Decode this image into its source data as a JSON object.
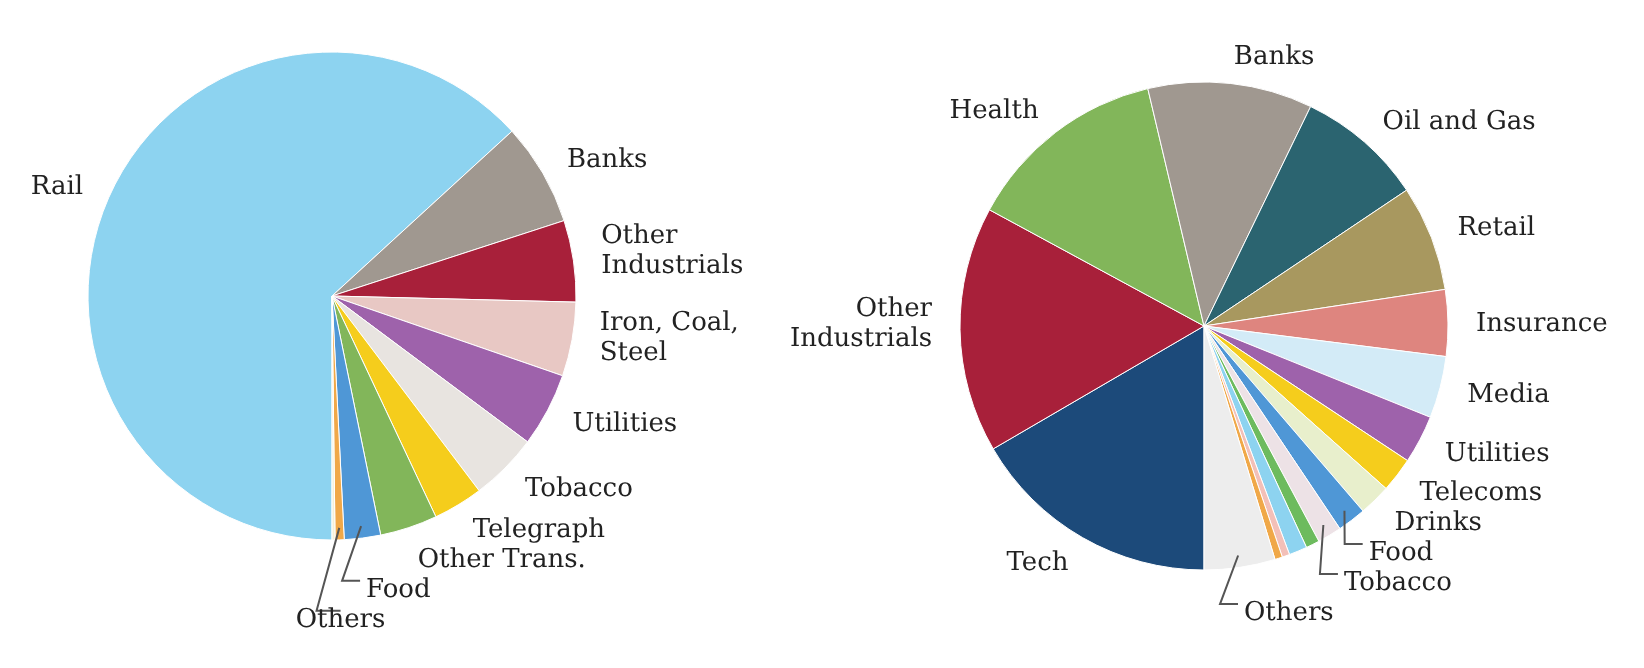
{
  "chart_data": [
    {
      "type": "pie",
      "categories": [
        "Rail",
        "Banks",
        "Other Industrials",
        "Iron, Coal, Steel",
        "Utilities",
        "Tobacco",
        "Telegraph",
        "Other Trans.",
        "Food",
        "Others",
        null
      ],
      "values": [
        63.2,
        6.8,
        5.4,
        4.9,
        4.9,
        4.5,
        3.3,
        3.8,
        2.4,
        0.6,
        0.2
      ],
      "colors": [
        "#8dd3f0",
        "#a09890",
        "#a8203a",
        "#e8c8c4",
        "#9e62ab",
        "#e8e4e0",
        "#f5cd1c",
        "#82b65a",
        "#4f97d6",
        "#f0a848",
        "#f5f0d8"
      ]
    },
    {
      "type": "pie",
      "categories": [
        "Tech",
        "Other Industrials",
        "Health",
        "Banks",
        "Oil and Gas",
        "Retail",
        "Insurance",
        "Media",
        "Utilities",
        "Telecoms",
        "Drinks",
        "Food",
        "Tobacco",
        null,
        null,
        null,
        null,
        "Others"
      ],
      "values": [
        16.6,
        16.3,
        13.4,
        10.9,
        8.4,
        7.0,
        4.4,
        4.1,
        3.2,
        2.3,
        2.1,
        1.9,
        1.6,
        0.9,
        1.2,
        0.5,
        0.5,
        4.7
      ],
      "colors": [
        "#1c4a7a",
        "#a8203a",
        "#82b65a",
        "#a09890",
        "#2b6470",
        "#a8985f",
        "#de857f",
        "#d3ebf7",
        "#9e62ab",
        "#f5cd1c",
        "#e8efcc",
        "#4f97d6",
        "#ede2e6",
        "#6dbb5e",
        "#8dd3f0",
        "#f3c0b8",
        "#f0a848",
        "#ededed"
      ]
    }
  ]
}
